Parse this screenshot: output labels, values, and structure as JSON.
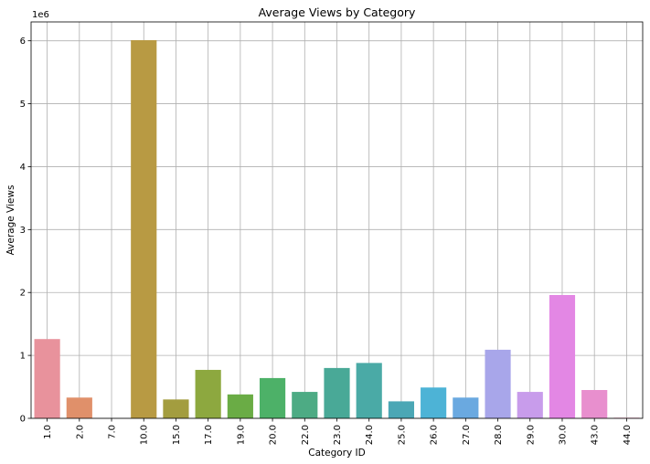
{
  "chart_data": {
    "type": "bar",
    "title": "Average Views by Category",
    "xlabel": "Category ID",
    "ylabel": "Average Views",
    "y_offset_label": "1e6",
    "categories": [
      "1.0",
      "2.0",
      "7.0",
      "10.0",
      "15.0",
      "17.0",
      "19.0",
      "20.0",
      "22.0",
      "23.0",
      "24.0",
      "25.0",
      "26.0",
      "27.0",
      "28.0",
      "29.0",
      "30.0",
      "43.0",
      "44.0"
    ],
    "values": [
      1260000,
      330000,
      0,
      6010000,
      300000,
      770000,
      380000,
      640000,
      420000,
      800000,
      880000,
      270000,
      490000,
      330000,
      1090000,
      420000,
      1960000,
      450000,
      10000
    ],
    "colors": [
      "#e8929c",
      "#e0906a",
      "#d29a4e",
      "#b89a43",
      "#a39d3f",
      "#8da83f",
      "#6aac45",
      "#4db168",
      "#4dab84",
      "#49a997",
      "#4aaaa6",
      "#4ba7b5",
      "#4db3d6",
      "#6aa9e0",
      "#a8a6ea",
      "#c89ceb",
      "#e387e4",
      "#e88fce",
      "#e895b5"
    ],
    "yticks": [
      0,
      1000000,
      2000000,
      3000000,
      4000000,
      5000000,
      6000000
    ],
    "ytick_labels": [
      "0",
      "1",
      "2",
      "3",
      "4",
      "5",
      "6"
    ],
    "ylim": [
      0,
      6300000
    ],
    "grid": true,
    "legend": "none"
  }
}
